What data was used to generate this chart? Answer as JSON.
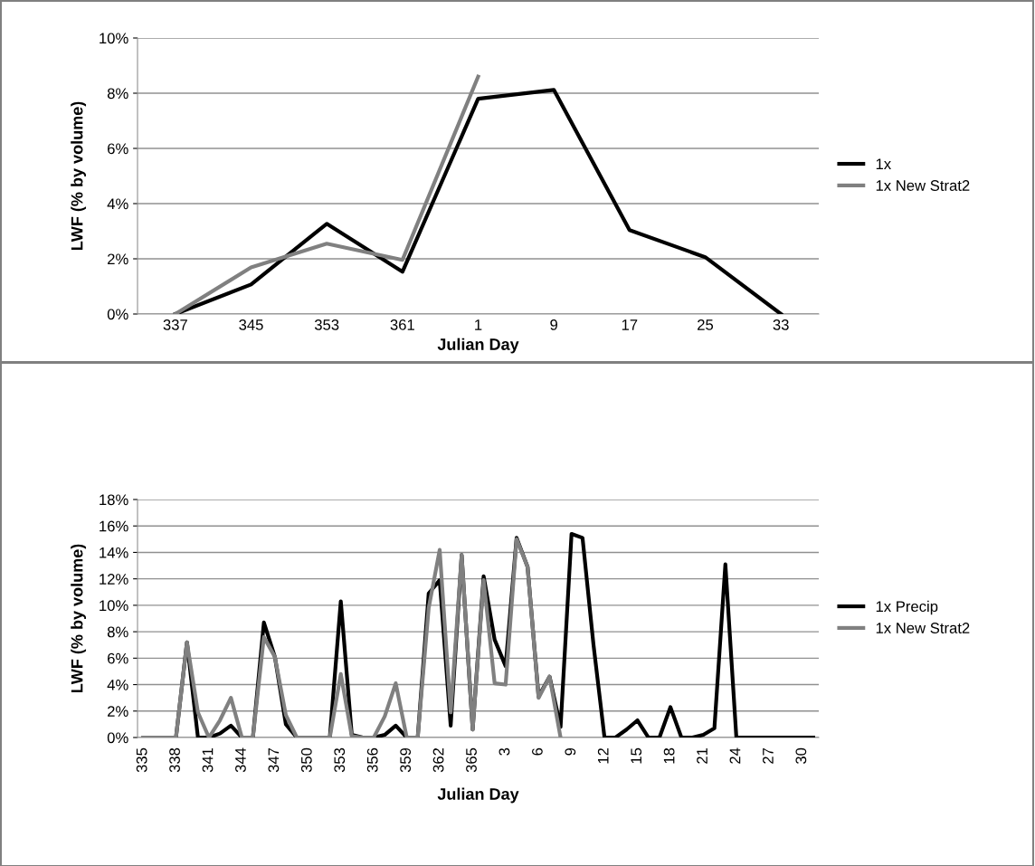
{
  "chart_data": [
    {
      "type": "line",
      "xlabel": "Julian Day",
      "ylabel": "LWF (% by volume)",
      "categories": [
        "337",
        "345",
        "353",
        "361",
        "1",
        "9",
        "17",
        "25",
        "33"
      ],
      "series": [
        {
          "name": "1x",
          "color": "#000000",
          "values": [
            0,
            1.07,
            3.27,
            1.53,
            7.8,
            8.12,
            3.04,
            2.06,
            0
          ]
        },
        {
          "name": "1x New Strat2",
          "color": "#808080",
          "values": [
            0,
            1.69,
            2.55,
            1.96,
            8.6,
            null,
            null,
            null,
            null
          ]
        }
      ],
      "ylim": [
        0,
        10
      ],
      "yticks": [
        {
          "value": 0,
          "label": "0%"
        },
        {
          "value": 2,
          "label": "2%"
        },
        {
          "value": 4,
          "label": "4%"
        },
        {
          "value": 6,
          "label": "6%"
        },
        {
          "value": 8,
          "label": "8%"
        },
        {
          "value": 10,
          "label": "10%"
        }
      ],
      "grid": "y",
      "legend": "right",
      "marker": "none",
      "line_style": "solid"
    },
    {
      "type": "line",
      "xlabel": "Julian Day",
      "ylabel": "LWF (% by volume)",
      "categories": [
        "335",
        null,
        null,
        "338",
        null,
        null,
        "341",
        null,
        null,
        "344",
        null,
        null,
        "347",
        null,
        null,
        "350",
        null,
        null,
        "353",
        null,
        null,
        "356",
        null,
        null,
        "359",
        null,
        null,
        "362",
        null,
        null,
        "365",
        null,
        null,
        "3",
        null,
        null,
        "6",
        null,
        null,
        "9",
        null,
        null,
        "12",
        null,
        null,
        "15",
        null,
        null,
        "18",
        null,
        null,
        "21",
        null,
        null,
        "24",
        null,
        null,
        "27",
        null,
        null,
        "30",
        null
      ],
      "series": [
        {
          "name": "1x Precip",
          "color": "#000000",
          "values": [
            0,
            0,
            0,
            0,
            7.2,
            0,
            0,
            0.3,
            0.9,
            0,
            0,
            8.7,
            6.1,
            1.0,
            0,
            0,
            0,
            0,
            10.3,
            0.2,
            0,
            0,
            0.2,
            0.9,
            0,
            0,
            10.9,
            11.9,
            0.9,
            13.8,
            0.6,
            12.2,
            7.4,
            5.4,
            15.1,
            12.9,
            3.1,
            4.6,
            0.8,
            15.4,
            15.1,
            7.0,
            0,
            0,
            0.6,
            1.3,
            0,
            0,
            2.3,
            0,
            0,
            0.2,
            0.7,
            13.1,
            0,
            0,
            0,
            0,
            0,
            0,
            0,
            0
          ]
        },
        {
          "name": "1x New Strat2",
          "color": "#808080",
          "values": [
            0,
            0,
            0,
            0,
            7.2,
            1.9,
            0,
            1.3,
            3.0,
            0,
            0,
            7.6,
            6.1,
            1.7,
            0,
            0,
            0,
            0,
            4.8,
            0.1,
            0,
            0,
            1.6,
            4.1,
            0,
            0,
            9.8,
            14.2,
            1.9,
            13.8,
            0.6,
            11.9,
            4.1,
            4.0,
            15.0,
            12.9,
            3.0,
            4.6,
            0,
            null,
            null,
            null,
            null,
            null,
            null,
            null,
            null,
            null,
            null,
            null,
            null,
            null,
            null,
            null,
            null,
            null,
            null,
            null,
            null,
            null,
            null,
            null
          ]
        }
      ],
      "ylim": [
        0,
        18
      ],
      "yticks": [
        {
          "value": 0,
          "label": "0%"
        },
        {
          "value": 2,
          "label": "2%"
        },
        {
          "value": 4,
          "label": "4%"
        },
        {
          "value": 6,
          "label": "6%"
        },
        {
          "value": 8,
          "label": "8%"
        },
        {
          "value": 10,
          "label": "10%"
        },
        {
          "value": 12,
          "label": "12%"
        },
        {
          "value": 14,
          "label": "14%"
        },
        {
          "value": 16,
          "label": "16%"
        },
        {
          "value": 18,
          "label": "18%"
        }
      ],
      "grid": "y",
      "legend": "right",
      "marker": "none",
      "line_style": "solid"
    }
  ]
}
